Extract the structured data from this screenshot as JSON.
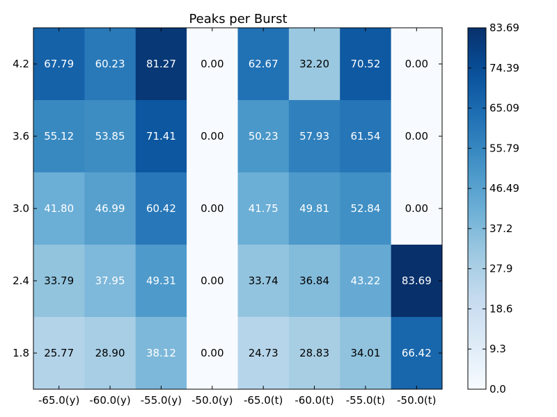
{
  "chart_data": {
    "type": "heatmap",
    "title": "Peaks per Burst",
    "x_categories": [
      "-65.0(y)",
      "-60.0(y)",
      "-55.0(y)",
      "-50.0(y)",
      "-65.0(t)",
      "-60.0(t)",
      "-55.0(t)",
      "-50.0(t)"
    ],
    "y_categories": [
      "4.2",
      "3.6",
      "3.0",
      "2.4",
      "1.8"
    ],
    "values": [
      [
        67.79,
        60.23,
        81.27,
        0.0,
        62.67,
        32.2,
        70.52,
        0.0
      ],
      [
        55.12,
        53.85,
        71.41,
        0.0,
        50.23,
        57.93,
        61.54,
        0.0
      ],
      [
        41.8,
        46.99,
        60.42,
        0.0,
        41.75,
        49.81,
        52.84,
        0.0
      ],
      [
        33.79,
        37.95,
        49.31,
        0.0,
        33.74,
        36.84,
        43.22,
        83.69
      ],
      [
        25.77,
        28.9,
        38.12,
        0.0,
        24.73,
        28.83,
        34.01,
        66.42
      ]
    ],
    "value_labels": [
      [
        "67.79",
        "60.23",
        "81.27",
        "0.00",
        "62.67",
        "32.20",
        "70.52",
        "0.00"
      ],
      [
        "55.12",
        "53.85",
        "71.41",
        "0.00",
        "50.23",
        "57.93",
        "61.54",
        "0.00"
      ],
      [
        "41.80",
        "46.99",
        "60.42",
        "0.00",
        "41.75",
        "49.81",
        "52.84",
        "0.00"
      ],
      [
        "33.79",
        "37.95",
        "49.31",
        "0.00",
        "33.74",
        "36.84",
        "43.22",
        "83.69"
      ],
      [
        "25.77",
        "28.90",
        "38.12",
        "0.00",
        "24.73",
        "28.83",
        "34.01",
        "66.42"
      ]
    ],
    "colormap": "Blues",
    "vmin": 0.0,
    "vmax": 83.69,
    "colorbar_ticks": [
      0.0,
      9.3,
      18.6,
      27.9,
      37.2,
      46.49,
      55.79,
      65.09,
      74.39,
      83.69
    ],
    "colorbar_tick_labels": [
      "0.0",
      "9.3",
      "18.6",
      "27.9",
      "37.2",
      "46.49",
      "55.79",
      "65.09",
      "74.39",
      "83.69"
    ],
    "xlabel": "",
    "ylabel": ""
  }
}
